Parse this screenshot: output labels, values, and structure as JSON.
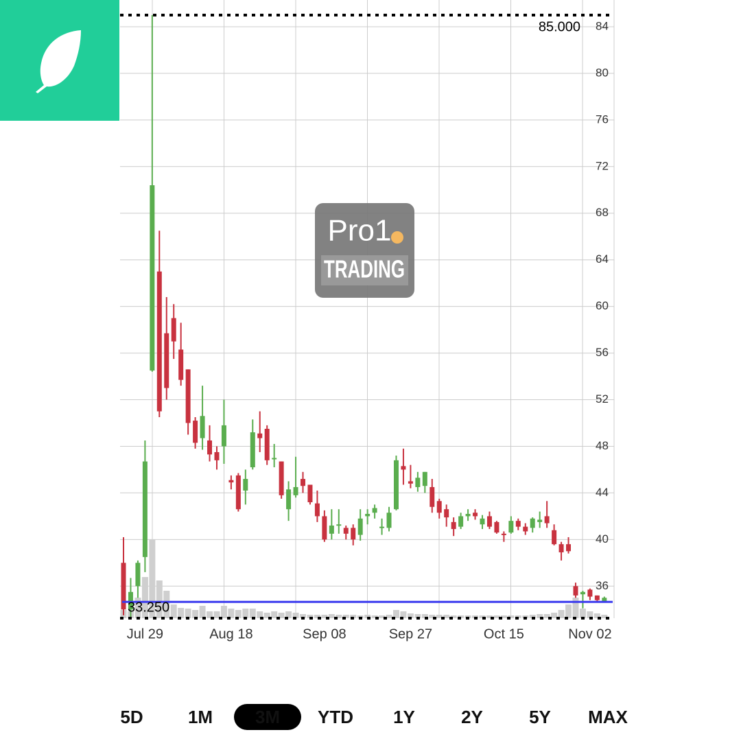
{
  "chart_data": {
    "type": "candlestick",
    "categories": [
      null,
      null,
      null,
      "Jul 29",
      null,
      null,
      null,
      null,
      null,
      null,
      null,
      null,
      null,
      null,
      null,
      "Aug 18",
      null,
      null,
      null,
      null,
      null,
      null,
      null,
      null,
      null,
      null,
      null,
      null,
      "Sep 08",
      null,
      null,
      null,
      null,
      null,
      null,
      null,
      null,
      null,
      null,
      null,
      "Sep 27",
      null,
      null,
      null,
      null,
      null,
      null,
      null,
      null,
      null,
      null,
      null,
      null,
      "Oct 15",
      null,
      null,
      null,
      null,
      null,
      null,
      null,
      null,
      null,
      null,
      null,
      "Nov 02",
      null,
      null
    ],
    "open": [
      38,
      34,
      36,
      38.5,
      54.5,
      63,
      57.7,
      59,
      56.3,
      54.6,
      50.2,
      48.7,
      48.5,
      47.5,
      48,
      45.1,
      45.5,
      44.2,
      46.2,
      49.1,
      49.5,
      47,
      46.7,
      42.6,
      43.8,
      45.2,
      44.7,
      43.1,
      42,
      40.5,
      41.3,
      41,
      41,
      40.4,
      42,
      42.3,
      41,
      41,
      42.6,
      46.3,
      45,
      44.5,
      44.6,
      44.5,
      43.3,
      42.6,
      41.5,
      41.1,
      42,
      42.3,
      41.3,
      42,
      41.5,
      40.5,
      40.6,
      41.6,
      41.1,
      41,
      41.5,
      42,
      40.8,
      39.6,
      39.6,
      36,
      35.3,
      35.7,
      35.2,
      34.7
    ],
    "high": [
      40.2,
      36.7,
      38.2,
      48.5,
      85,
      66.5,
      60.8,
      60.2,
      58.6,
      54.6,
      50.5,
      53.2,
      49.8,
      48,
      52,
      45.5,
      45.7,
      46,
      50.3,
      51,
      49.8,
      48.2,
      46.7,
      45,
      47.1,
      45.8,
      44.7,
      44.2,
      42.5,
      42.6,
      42.6,
      41.2,
      41.3,
      42.6,
      42.6,
      43,
      41.8,
      42.8,
      47.2,
      47.8,
      46.4,
      45.8,
      45.8,
      45.2,
      43.5,
      43,
      41.9,
      42.3,
      42.6,
      42.6,
      42.1,
      42.4,
      41.6,
      40.7,
      42,
      41.8,
      41.4,
      41.9,
      42.4,
      43.3,
      41.3,
      39.8,
      40.2,
      36.3,
      35.6,
      35.8,
      35.2,
      35.1
    ],
    "low": [
      33.5,
      33.3,
      35,
      37.2,
      54.4,
      50.5,
      52,
      55.5,
      53.2,
      49,
      47.8,
      47.7,
      46.7,
      46,
      46.5,
      44.3,
      42.4,
      43,
      46,
      47.5,
      46.4,
      46.2,
      43.5,
      41.6,
      43.6,
      44,
      43,
      41.5,
      39.8,
      40,
      40.5,
      40,
      39.5,
      39.9,
      41.3,
      41.8,
      40.4,
      40.7,
      42.5,
      44.7,
      44.4,
      44.1,
      44,
      42.3,
      41.8,
      41.1,
      40.3,
      40.9,
      41.6,
      41.7,
      40.9,
      40.9,
      40.5,
      39.8,
      40.5,
      40.8,
      40.4,
      40.6,
      41,
      41,
      39.5,
      38.2,
      38.8,
      35,
      34.1,
      34.8,
      34.6,
      34.6
    ],
    "close": [
      34,
      35.5,
      38,
      46.7,
      70.4,
      51,
      53,
      57,
      53.7,
      50,
      48.3,
      50.6,
      47.3,
      46.8,
      49.8,
      44.9,
      42.6,
      45.2,
      49.2,
      48.7,
      46.8,
      47,
      43.8,
      44.3,
      44.5,
      44.6,
      43.2,
      42,
      40,
      41.2,
      41.3,
      40.5,
      40,
      41.8,
      42.2,
      42.7,
      41.1,
      42.3,
      46.8,
      46,
      44.8,
      45.3,
      45.8,
      42.8,
      42.3,
      41.9,
      40.9,
      42,
      42.2,
      42,
      41.8,
      41.1,
      40.6,
      40.4,
      41.6,
      41.1,
      40.7,
      41.8,
      41.7,
      41.4,
      39.6,
      38.9,
      39,
      35.2,
      35.5,
      35.1,
      34.8,
      35
    ],
    "volume": [
      12,
      10,
      30,
      60,
      115,
      55,
      40,
      20,
      15,
      14,
      12,
      18,
      10,
      10,
      18,
      14,
      12,
      14,
      14,
      10,
      8,
      10,
      8,
      10,
      8,
      6,
      5,
      5,
      5,
      6,
      5,
      5,
      5,
      4,
      5,
      4,
      4,
      5,
      12,
      10,
      7,
      6,
      6,
      5,
      5,
      5,
      4,
      4,
      4,
      4,
      4,
      4,
      4,
      4,
      4,
      4,
      4,
      5,
      6,
      6,
      8,
      12,
      20,
      30,
      14,
      10,
      7,
      5
    ],
    "up_color": "#5aad4e",
    "down_color": "#c8323f",
    "volume_color": "#cfcfcf",
    "ylim": [
      33.25,
      85
    ],
    "yticks": [
      36,
      40,
      44,
      48,
      52,
      56,
      60,
      64,
      68,
      72,
      76,
      80,
      84
    ],
    "grid": true,
    "high_label": "85.000",
    "low_label": "33.250",
    "price_line": 34.65,
    "price_line_color": "#3a3aee"
  },
  "periods": [
    "5D",
    "1M",
    "3M",
    "YTD",
    "1Y",
    "2Y",
    "5Y",
    "MAX"
  ],
  "active_period": 2,
  "watermark": {
    "brand": "Pro1",
    "tagline": "TRADING"
  }
}
